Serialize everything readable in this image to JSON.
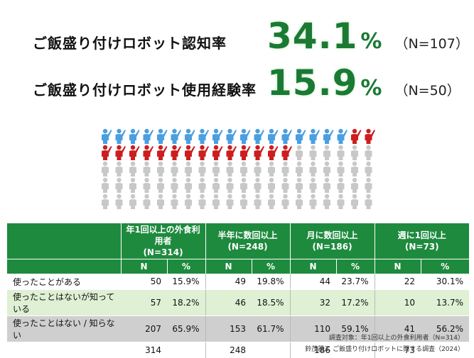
{
  "stats": {
    "awareness": {
      "label": "ご飯盛り付けロボット認知率",
      "value": "34.1",
      "unit": "%",
      "n": "（N=107）"
    },
    "experience": {
      "label": "ご飯盛り付けロボット使用経験率",
      "value": "15.9",
      "unit": "%",
      "n": "（N=50）"
    }
  },
  "chart_data": [
    {
      "type": "pictogram",
      "total_icons": 100,
      "per_row": 20,
      "groups": [
        {
          "color": "#4a9fe0",
          "count": 18
        },
        {
          "color": "#cc1e1e",
          "count": 16
        },
        {
          "color": "#c8c8c8",
          "count": 66
        }
      ]
    },
    {
      "type": "table",
      "columns": [
        {
          "title": "年1回以上の外食利用者",
          "n": "(N=314)"
        },
        {
          "title": "半年に数回以上",
          "n": "(N=248)"
        },
        {
          "title": "月に数回以上",
          "n": "(N=186)"
        },
        {
          "title": "週に1回以上",
          "n": "(N=73)"
        }
      ],
      "sub_headers": [
        "N",
        "%"
      ],
      "rows": [
        {
          "label": "使ったことがある",
          "values": [
            [
              "50",
              "15.9%"
            ],
            [
              "49",
              "19.8%"
            ],
            [
              "44",
              "23.7%"
            ],
            [
              "22",
              "30.1%"
            ]
          ]
        },
        {
          "label": "使ったことはないが知っている",
          "values": [
            [
              "57",
              "18.2%"
            ],
            [
              "46",
              "18.5%"
            ],
            [
              "32",
              "17.2%"
            ],
            [
              "10",
              "13.7%"
            ]
          ]
        },
        {
          "label": "使ったことはない / 知らない",
          "values": [
            [
              "207",
              "65.9%"
            ],
            [
              "153",
              "61.7%"
            ],
            [
              "110",
              "59.1%"
            ],
            [
              "41",
              "56.2%"
            ]
          ]
        }
      ],
      "totals": [
        "314",
        "248",
        "186",
        "73"
      ]
    }
  ],
  "footnotes": {
    "target": "調査対象：年1回以上の外食利用者（N=314）",
    "source": "鈴茂器工 ご飯盛り付けロボットに関する調査（2024）"
  }
}
